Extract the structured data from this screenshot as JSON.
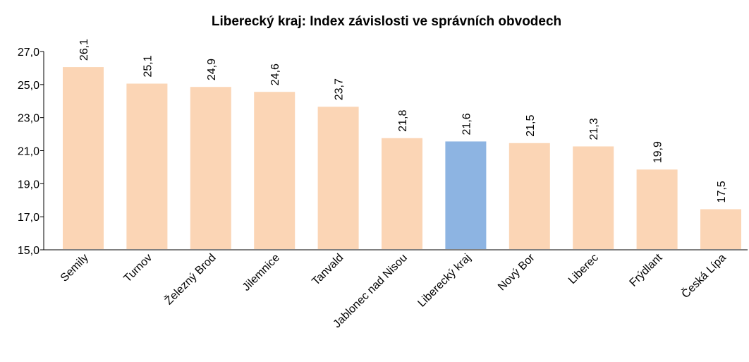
{
  "chart_data": {
    "type": "bar",
    "title": "Liberecký kraj: Index závislosti ve správních obvodech",
    "categories": [
      "Semily",
      "Turnov",
      "Železný Brod",
      "Jilemnice",
      "Tanvald",
      "Jablonec nad Nisou",
      "Liberecký kraj",
      "Nový Bor",
      "Liberec",
      "Frýdlant",
      "Česká Lípa"
    ],
    "values": [
      26.1,
      25.1,
      24.9,
      24.6,
      23.7,
      21.8,
      21.6,
      21.5,
      21.3,
      19.9,
      17.5
    ],
    "value_labels": [
      "26,1",
      "25,1",
      "24,9",
      "24,6",
      "23,7",
      "21,8",
      "21,6",
      "21,5",
      "21,3",
      "19,9",
      "17,5"
    ],
    "colors": [
      "#fbd5b5",
      "#fbd5b5",
      "#fbd5b5",
      "#fbd5b5",
      "#fbd5b5",
      "#fbd5b5",
      "#8db4e2",
      "#fbd5b5",
      "#fbd5b5",
      "#fbd5b5",
      "#fbd5b5"
    ],
    "ylim": [
      15,
      27
    ],
    "yticks": [
      {
        "value": 15,
        "label": "15,0"
      },
      {
        "value": 17,
        "label": "17,0"
      },
      {
        "value": 19,
        "label": "19,0"
      },
      {
        "value": 21,
        "label": "21,0"
      },
      {
        "value": 23,
        "label": "23,0"
      },
      {
        "value": 25,
        "label": "25,0"
      },
      {
        "value": 27,
        "label": "27,0"
      }
    ],
    "grid": false
  }
}
